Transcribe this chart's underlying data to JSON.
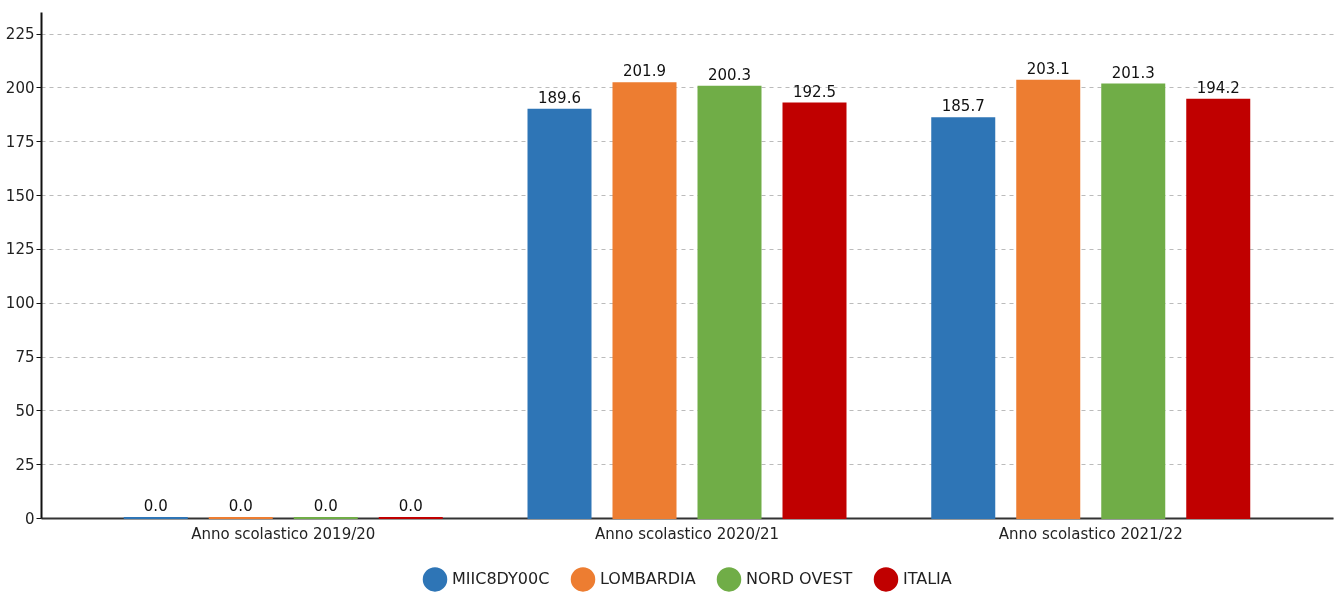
{
  "chart_data": {
    "type": "bar",
    "categories": [
      "Anno scolastico 2019/20",
      "Anno scolastico 2020/21",
      "Anno scolastico 2021/22"
    ],
    "series": [
      {
        "name": "MIIC8DY00C",
        "color": "#2e75b6",
        "values": [
          0.0,
          189.6,
          185.7
        ],
        "value_labels": [
          "0.0",
          "189.6",
          "185.7"
        ]
      },
      {
        "name": "LOMBARDIA",
        "color": "#ed7d31",
        "values": [
          0.0,
          201.9,
          203.1
        ],
        "value_labels": [
          "0.0",
          "201.9",
          "203.1"
        ]
      },
      {
        "name": "NORD OVEST",
        "color": "#70ad47",
        "values": [
          0.0,
          200.3,
          201.3
        ],
        "value_labels": [
          "0.0",
          "200.3",
          "201.3"
        ]
      },
      {
        "name": "ITALIA",
        "color": "#c00000",
        "values": [
          0.0,
          192.5,
          194.2
        ],
        "value_labels": [
          "0.0",
          "192.5",
          "194.2"
        ]
      }
    ],
    "ylim": [
      0,
      235
    ],
    "yticks": [
      0,
      25,
      50,
      75,
      100,
      125,
      150,
      175,
      200,
      225
    ],
    "grid": "y",
    "legend": "bottom"
  }
}
